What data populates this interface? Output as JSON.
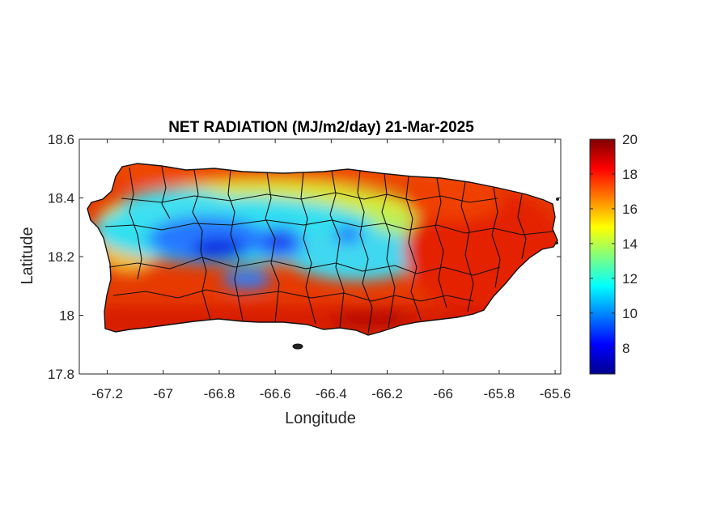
{
  "chart_data": {
    "type": "heatmap",
    "title": "NET RADIATION (MJ/m2/day) 21-Mar-2025",
    "xlabel": "Longitude",
    "ylabel": "Latitude",
    "xlim": [
      -67.3,
      -65.58
    ],
    "ylim": [
      17.8,
      18.6
    ],
    "x_ticks": [
      -67.2,
      -67,
      -66.8,
      -66.6,
      -66.4,
      -66.2,
      -66,
      -65.8,
      -65.6
    ],
    "x_tick_labels": [
      "-67.2",
      "-67",
      "-66.8",
      "-66.6",
      "-66.4",
      "-66.2",
      "-66",
      "-65.8",
      "-65.6"
    ],
    "y_ticks": [
      17.8,
      18,
      18.2,
      18.4,
      18.6
    ],
    "y_tick_labels": [
      "17.8",
      "18",
      "18.2",
      "18.4",
      "18.6"
    ],
    "colorbar": {
      "colormap": "jet",
      "clim": [
        6.5,
        20
      ],
      "ticks": [
        8,
        10,
        12,
        14,
        16,
        18,
        20
      ],
      "tick_labels": [
        "8",
        "10",
        "12",
        "14",
        "16",
        "18",
        "20"
      ]
    },
    "region": "Puerto Rico",
    "field_summary": {
      "north_coast": "high values 17-20",
      "west_central_interior": "low values 8-12, minimum near -66.85, 18.2",
      "south_coast": "high values 18-20",
      "east": "high values 18-20"
    }
  }
}
